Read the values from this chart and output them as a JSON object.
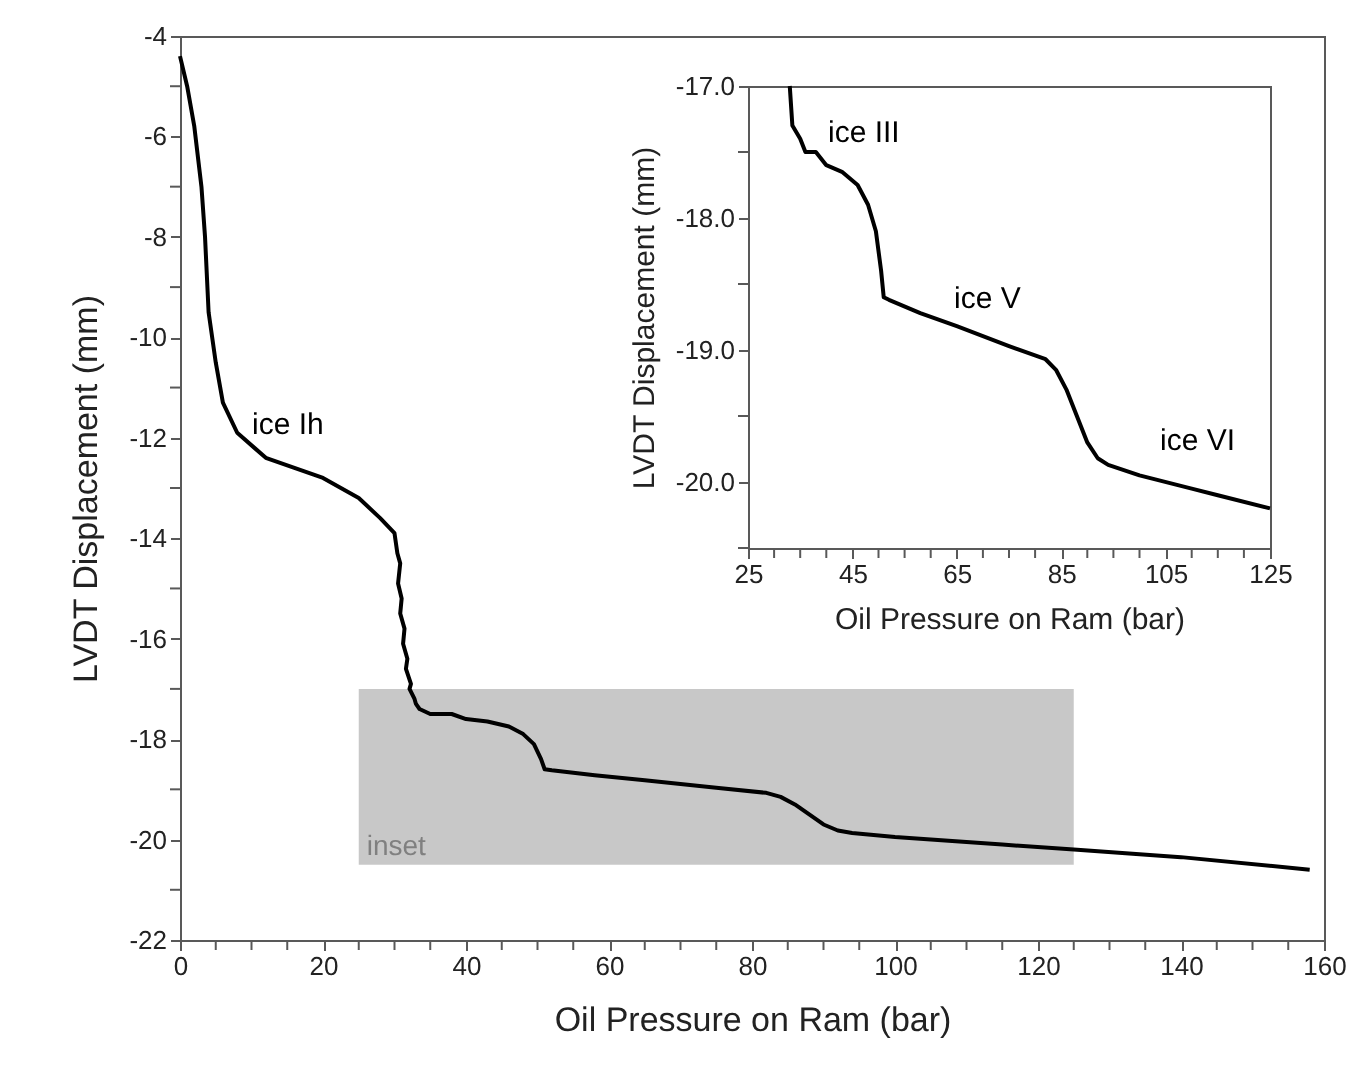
{
  "chart_data": [
    {
      "type": "line",
      "xlabel": "Oil Pressure on Ram (bar)",
      "ylabel": "LVDT Displacement (mm)",
      "xlim": [
        0,
        160
      ],
      "xticks": [
        0,
        {
          "value": 5,
          "label": null
        },
        {
          "value": 10,
          "label": null
        },
        {
          "value": 15,
          "label": null
        },
        20,
        {
          "value": 25,
          "label": null
        },
        {
          "value": 30,
          "label": null
        },
        {
          "value": 35,
          "label": null
        },
        40,
        {
          "value": 45,
          "label": null
        },
        {
          "value": 50,
          "label": null
        },
        {
          "value": 55,
          "label": null
        },
        60,
        {
          "value": 65,
          "label": null
        },
        {
          "value": 70,
          "label": null
        },
        {
          "value": 75,
          "label": null
        },
        80,
        {
          "value": 85,
          "label": null
        },
        {
          "value": 90,
          "label": null
        },
        {
          "value": 95,
          "label": null
        },
        100,
        {
          "value": 105,
          "label": null
        },
        {
          "value": 110,
          "label": null
        },
        {
          "value": 115,
          "label": null
        },
        120,
        {
          "value": 125,
          "label": null
        },
        {
          "value": 130,
          "label": null
        },
        {
          "value": 135,
          "label": null
        },
        140,
        {
          "value": 145,
          "label": null
        },
        {
          "value": 150,
          "label": null
        },
        {
          "value": 155,
          "label": null
        },
        160
      ],
      "ylim": [
        -22,
        -4
      ],
      "yticks": [
        -22,
        {
          "value": -21,
          "label": null
        },
        -20,
        {
          "value": -19,
          "label": null
        },
        -18,
        {
          "value": -17,
          "label": null
        },
        -16,
        {
          "value": -15,
          "label": null
        },
        -14,
        {
          "value": -13,
          "label": null
        },
        -12,
        {
          "value": -11,
          "label": null
        },
        -10,
        {
          "value": -9,
          "label": null
        },
        -8,
        {
          "value": -7,
          "label": null
        },
        -6,
        {
          "value": -5,
          "label": null
        },
        -4
      ],
      "grid": false,
      "x": [
        0,
        1,
        2,
        3,
        3.5,
        4,
        5,
        6,
        8,
        12,
        16,
        20,
        25,
        28,
        30,
        30.4,
        30.8,
        30.5,
        31,
        30.8,
        31.4,
        31.2,
        31.8,
        31.6,
        32.3,
        32.1,
        32.8,
        33,
        33.5,
        35,
        38,
        40,
        43,
        46,
        48,
        49.5,
        50.5,
        51,
        52,
        58,
        65,
        75,
        82,
        84,
        86,
        88,
        90,
        92,
        94,
        100,
        110,
        115,
        125,
        140,
        158
      ],
      "series": [
        {
          "color": "#000000",
          "values": [
            -4.4,
            -5,
            -5.8,
            -7,
            -8,
            -9.5,
            -10.5,
            -11.3,
            -11.9,
            -12.4,
            -12.6,
            -12.8,
            -13.2,
            -13.6,
            -13.9,
            -14.3,
            -14.5,
            -14.9,
            -15.2,
            -15.5,
            -15.8,
            -16.1,
            -16.4,
            -16.6,
            -16.9,
            -17.0,
            -17.2,
            -17.3,
            -17.4,
            -17.5,
            -17.5,
            -17.6,
            -17.65,
            -17.75,
            -17.9,
            -18.1,
            -18.4,
            -18.6,
            -18.62,
            -18.72,
            -18.82,
            -18.97,
            -19.07,
            -19.15,
            -19.3,
            -19.5,
            -19.7,
            -19.82,
            -19.87,
            -19.95,
            -20.05,
            -20.1,
            -20.2,
            -20.35,
            -20.6
          ]
        }
      ],
      "bands": [
        {
          "axis": "x",
          "from": 25,
          "to": 125,
          "label": "inset",
          "color": "#c8c8c8"
        }
      ],
      "annotations": [
        "ice Ih"
      ]
    },
    {
      "type": "line",
      "xlabel": "Oil Pressure on Ram (bar)",
      "ylabel": "LVDT Displacement (mm)",
      "xlim": [
        25,
        125
      ],
      "xticks": [
        25,
        {
          "value": 30,
          "label": null
        },
        {
          "value": 35,
          "label": null
        },
        {
          "value": 40,
          "label": null
        },
        45,
        {
          "value": 50,
          "label": null
        },
        {
          "value": 55,
          "label": null
        },
        {
          "value": 60,
          "label": null
        },
        65,
        {
          "value": 70,
          "label": null
        },
        {
          "value": 75,
          "label": null
        },
        {
          "value": 80,
          "label": null
        },
        85,
        {
          "value": 90,
          "label": null
        },
        {
          "value": 95,
          "label": null
        },
        {
          "value": 100,
          "label": null
        },
        105,
        {
          "value": 110,
          "label": null
        },
        {
          "value": 115,
          "label": null
        },
        {
          "value": 120,
          "label": null
        },
        125
      ],
      "ylim": [
        -20.5,
        -17
      ],
      "yticks": [
        {
          "value": -20.5,
          "label": null
        },
        {
          "value": -20,
          "label": "-20.0"
        },
        {
          "value": -19.5,
          "label": null
        },
        {
          "value": -19,
          "label": "-19.0"
        },
        {
          "value": -18.5,
          "label": null
        },
        {
          "value": -18,
          "label": "-18.0"
        },
        {
          "value": -17.5,
          "label": null
        },
        {
          "value": -17,
          "label": "-17.0"
        }
      ],
      "grid": false,
      "x": [
        33,
        33.5,
        35,
        36,
        38,
        40,
        43,
        46,
        48,
        49.5,
        50.5,
        51,
        52,
        58,
        65,
        75,
        82,
        84,
        86,
        88,
        90,
        92,
        94,
        100,
        110,
        115,
        125
      ],
      "series": [
        {
          "color": "#000000",
          "values": [
            -17.0,
            -17.3,
            -17.4,
            -17.5,
            -17.5,
            -17.6,
            -17.65,
            -17.75,
            -17.9,
            -18.1,
            -18.4,
            -18.6,
            -18.62,
            -18.72,
            -18.82,
            -18.97,
            -19.07,
            -19.15,
            -19.3,
            -19.5,
            -19.7,
            -19.82,
            -19.87,
            -19.95,
            -20.05,
            -20.1,
            -20.2
          ]
        }
      ],
      "annotations": [
        "ice III",
        "ice V",
        "ice VI"
      ]
    }
  ]
}
